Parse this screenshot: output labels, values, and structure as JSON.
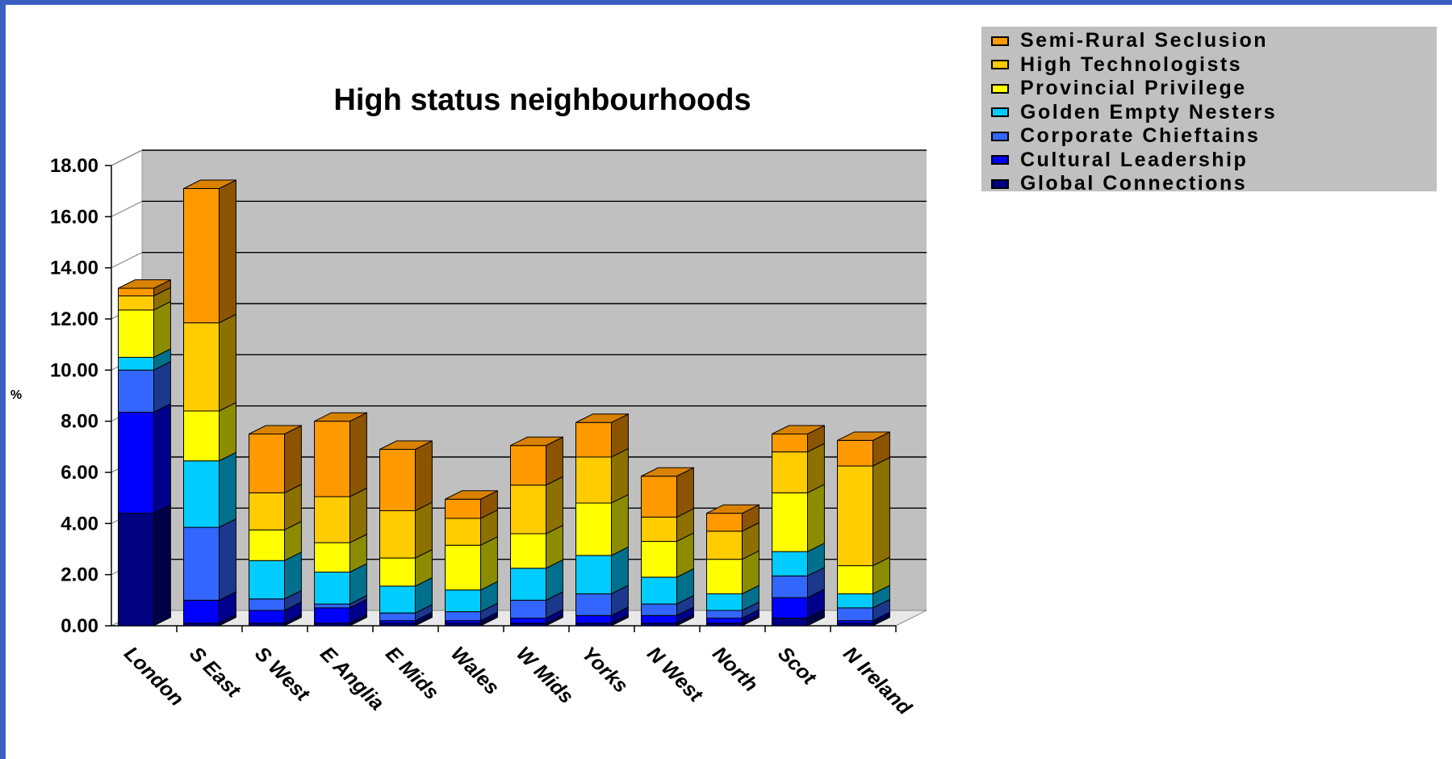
{
  "chart_data": {
    "type": "bar",
    "stacked": true,
    "style": "3d",
    "title": "High status neighbourhoods",
    "ylabel": "%",
    "xlabel": "",
    "ylim": [
      0,
      18
    ],
    "yticks": [
      "0.00",
      "2.00",
      "4.00",
      "6.00",
      "8.00",
      "10.00",
      "12.00",
      "14.00",
      "16.00",
      "18.00"
    ],
    "grid": true,
    "legend_position": "top-right",
    "categories": [
      "London",
      "S East",
      "S West",
      "E Anglia",
      "E Mids",
      "Wales",
      "W Mids",
      "Yorks",
      "N West",
      "North",
      "Scot",
      "N Ireland"
    ],
    "series": [
      {
        "name": "Global Connections",
        "color": "#000080",
        "values": [
          4.4,
          0.1,
          0.1,
          0.1,
          0.1,
          0.1,
          0.1,
          0.1,
          0.1,
          0.1,
          0.3,
          0.1
        ]
      },
      {
        "name": "Cultural Leadership",
        "color": "#0000ff",
        "values": [
          3.95,
          0.9,
          0.5,
          0.6,
          0.1,
          0.1,
          0.2,
          0.3,
          0.3,
          0.2,
          0.8,
          0.1
        ]
      },
      {
        "name": "Corporate Chieftains",
        "color": "#3366ff",
        "values": [
          1.65,
          2.85,
          0.45,
          0.15,
          0.3,
          0.35,
          0.7,
          0.85,
          0.45,
          0.3,
          0.85,
          0.5
        ]
      },
      {
        "name": "Golden Empty Nesters",
        "color": "#00ccff",
        "values": [
          0.5,
          2.6,
          1.5,
          1.25,
          1.05,
          0.85,
          1.25,
          1.5,
          1.05,
          0.65,
          0.95,
          0.55
        ]
      },
      {
        "name": "Provincial Privilege",
        "color": "#ffff00",
        "values": [
          1.85,
          1.95,
          1.2,
          1.15,
          1.1,
          1.75,
          1.35,
          2.05,
          1.4,
          1.35,
          2.3,
          1.1
        ]
      },
      {
        "name": "High Technologists",
        "color": "#ffcc00",
        "values": [
          0.55,
          3.45,
          1.45,
          1.8,
          1.85,
          1.05,
          1.9,
          1.8,
          0.95,
          1.1,
          1.6,
          3.9
        ]
      },
      {
        "name": "Semi-Rural Seclusion",
        "color": "#ff9900",
        "values": [
          0.3,
          5.25,
          2.3,
          2.95,
          2.4,
          0.75,
          1.55,
          1.35,
          1.6,
          0.7,
          0.7,
          1.0
        ]
      }
    ]
  },
  "legend": {
    "items": [
      {
        "label": "Semi-Rural Seclusion",
        "color": "#ff9900"
      },
      {
        "label": "High Technologists",
        "color": "#ffcc00"
      },
      {
        "label": "Provincial Privilege",
        "color": "#ffff00"
      },
      {
        "label": "Golden Empty Nesters",
        "color": "#00ccff"
      },
      {
        "label": "Corporate Chieftains",
        "color": "#3366ff"
      },
      {
        "label": "Cultural Leadership",
        "color": "#0000ff"
      },
      {
        "label": "Global Connections",
        "color": "#000080"
      }
    ]
  }
}
